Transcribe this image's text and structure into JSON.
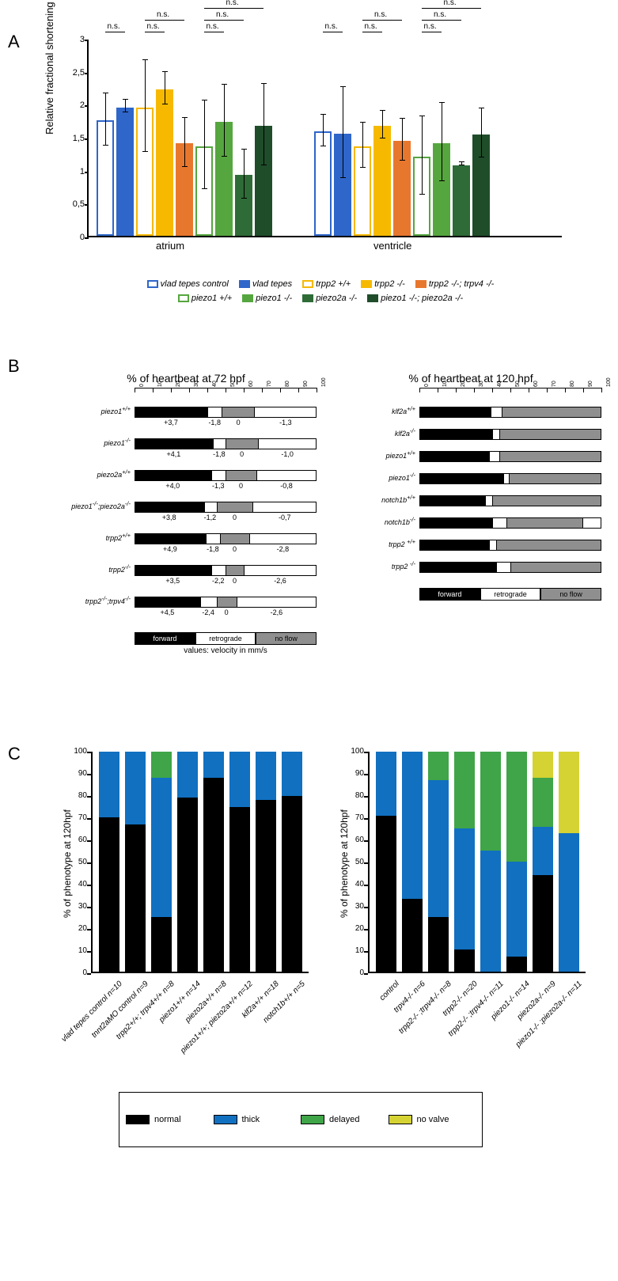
{
  "panel_labels": {
    "A": "A",
    "B": "B",
    "C": "C"
  },
  "panelA": {
    "ylabel": "Relative fractional shortening (a.u.)",
    "ylim": [
      0,
      3
    ],
    "yticks": [
      0,
      0.5,
      1,
      1.5,
      2,
      2.5,
      3
    ],
    "ytick_labels": [
      "0",
      "0,5",
      "1",
      "1,5",
      "2",
      "2,5",
      "3"
    ],
    "groups": [
      "atrium",
      "ventricle"
    ],
    "series": [
      {
        "name": "vlad tepes control",
        "fill": "#ffffff",
        "stroke": "#2f66c9"
      },
      {
        "name": "vlad tepes",
        "fill": "#2f66c9",
        "stroke": "#2f66c9"
      },
      {
        "name": "trpp2 +/+",
        "fill": "#ffffff",
        "stroke": "#f6b900"
      },
      {
        "name": "trpp2 -/-",
        "fill": "#f6b900",
        "stroke": "#f6b900"
      },
      {
        "name": "trpp2 -/-; trpv4 -/-",
        "fill": "#e8772e",
        "stroke": "#e8772e"
      },
      {
        "name": "piezo1 +/+",
        "fill": "#ffffff",
        "stroke": "#56a63f"
      },
      {
        "name": "piezo1 -/-",
        "fill": "#56a63f",
        "stroke": "#56a63f"
      },
      {
        "name": "piezo2a -/-",
        "fill": "#2e6b37",
        "stroke": "#2e6b37"
      },
      {
        "name": "piezo1 -/-; piezo2a -/-",
        "fill": "#1f4d2a",
        "stroke": "#1f4d2a"
      }
    ],
    "data": {
      "atrium": [
        {
          "v": 1.75,
          "el": 0.4,
          "eh": 0.4
        },
        {
          "v": 1.95,
          "el": 0.1,
          "eh": 0.1
        },
        {
          "v": 1.95,
          "el": 0.7,
          "eh": 0.7
        },
        {
          "v": 2.22,
          "el": 0.25,
          "eh": 0.25
        },
        {
          "v": 1.4,
          "el": 0.38,
          "eh": 0.38
        },
        {
          "v": 1.36,
          "el": 0.68,
          "eh": 0.68
        },
        {
          "v": 1.73,
          "el": 0.55,
          "eh": 0.55
        },
        {
          "v": 0.92,
          "el": 0.38,
          "eh": 0.38
        },
        {
          "v": 1.67,
          "el": 0.62,
          "eh": 0.62
        }
      ],
      "ventricle": [
        {
          "v": 1.58,
          "el": 0.25,
          "eh": 0.25
        },
        {
          "v": 1.55,
          "el": 0.7,
          "eh": 0.7
        },
        {
          "v": 1.36,
          "el": 0.35,
          "eh": 0.35
        },
        {
          "v": 1.67,
          "el": 0.22,
          "eh": 0.22
        },
        {
          "v": 1.44,
          "el": 0.32,
          "eh": 0.32
        },
        {
          "v": 1.2,
          "el": 0.6,
          "eh": 0.6
        },
        {
          "v": 1.4,
          "el": 0.6,
          "eh": 0.6
        },
        {
          "v": 1.07,
          "el": 0.03,
          "eh": 0.03
        },
        {
          "v": 1.54,
          "el": 0.38,
          "eh": 0.38
        }
      ]
    },
    "ns_label": "n.s.",
    "ns_comparisons": [
      {
        "group": 0,
        "from": 0,
        "to": 1,
        "level": 0
      },
      {
        "group": 0,
        "from": 2,
        "to": 3,
        "level": 0
      },
      {
        "group": 0,
        "from": 2,
        "to": 4,
        "level": 1
      },
      {
        "group": 0,
        "from": 5,
        "to": 6,
        "level": 0
      },
      {
        "group": 0,
        "from": 5,
        "to": 7,
        "level": 1
      },
      {
        "group": 0,
        "from": 5,
        "to": 8,
        "level": 2
      },
      {
        "group": 1,
        "from": 0,
        "to": 1,
        "level": 0
      },
      {
        "group": 1,
        "from": 2,
        "to": 3,
        "level": 0
      },
      {
        "group": 1,
        "from": 2,
        "to": 4,
        "level": 1
      },
      {
        "group": 1,
        "from": 5,
        "to": 6,
        "level": 0
      },
      {
        "group": 1,
        "from": 5,
        "to": 7,
        "level": 1
      },
      {
        "group": 1,
        "from": 5,
        "to": 8,
        "level": 2
      }
    ]
  },
  "panelB": {
    "left": {
      "title": "% of heartbeat at 72 hpf",
      "xticks": [
        0,
        10,
        20,
        30,
        40,
        50,
        60,
        70,
        80,
        90,
        100
      ],
      "rows": [
        {
          "label": "piezo1+/+",
          "segs": [
            40,
            8,
            18,
            34
          ],
          "vels": [
            "+3,7",
            "-1,8",
            "0",
            "-1,3"
          ]
        },
        {
          "label": "piezo1-/-",
          "segs": [
            43,
            7,
            18,
            32
          ],
          "vels": [
            "+4,1",
            "-1,8",
            "0",
            "-1,0"
          ]
        },
        {
          "label": "piezo2a+/+",
          "segs": [
            42,
            8,
            17,
            33
          ],
          "vels": [
            "+4,0",
            "-1,3",
            "0",
            "-0,8"
          ]
        },
        {
          "label": "piezo1-/-;piezo2a-/-",
          "segs": [
            38,
            7,
            20,
            35
          ],
          "vels": [
            "+3,8",
            "-1,2",
            "0",
            "-0,7"
          ]
        },
        {
          "label": "trpp2+/+",
          "segs": [
            39,
            8,
            16,
            37
          ],
          "vels": [
            "+4,9",
            "-1,8",
            "0",
            "-2,8"
          ]
        },
        {
          "label": "trpp2-/-",
          "segs": [
            42,
            8,
            10,
            40
          ],
          "vels": [
            "+3,5",
            "-2,2",
            "0",
            "-2,6"
          ]
        },
        {
          "label": "trpp2-/-;trpv4-/-",
          "segs": [
            36,
            9,
            11,
            44
          ],
          "vels": [
            "+4,5",
            "-2,4",
            "0",
            "-2,6"
          ]
        }
      ],
      "legend": [
        "forward",
        "retrograde",
        "no flow"
      ],
      "caption": "values: velocity in mm/s"
    },
    "right": {
      "title": "% of heartbeat at 120 hpf",
      "xticks": [
        0,
        10,
        20,
        30,
        40,
        50,
        60,
        70,
        80,
        90,
        100
      ],
      "rows": [
        {
          "label": "klf2a+/+",
          "segs": [
            39,
            6,
            55,
            0
          ],
          "vels": null
        },
        {
          "label": "klf2a-/-",
          "segs": [
            40,
            4,
            56,
            0
          ],
          "vels": null
        },
        {
          "label": "piezo1+/+",
          "segs": [
            38,
            6,
            56,
            0
          ],
          "vels": null
        },
        {
          "label": "piezo1-/-",
          "segs": [
            46,
            3,
            51,
            0
          ],
          "vels": null
        },
        {
          "label": "notch1b+/+",
          "segs": [
            36,
            4,
            60,
            0
          ],
          "vels": null
        },
        {
          "label": "notch1b-/-",
          "segs": [
            40,
            8,
            42,
            10
          ],
          "vels": null
        },
        {
          "label": "trpp2 +/+",
          "segs": [
            38,
            4,
            58,
            0
          ],
          "vels": null
        },
        {
          "label": "trpp2 -/-",
          "segs": [
            42,
            8,
            50,
            0
          ],
          "vels": null
        }
      ],
      "legend": [
        "forward",
        "retrograde",
        "no flow"
      ]
    },
    "seg_colors": [
      "#000000",
      "#ffffff",
      "#8f8f8f",
      "#ffffff"
    ],
    "legend_colors": [
      "#000000",
      "#ffffff",
      "#8f8f8f"
    ],
    "legend_text_colors": [
      "#ffffff",
      "#000000",
      "#000000"
    ]
  },
  "panelC": {
    "ylabel": "% of phenotype at 120hpf",
    "yticks": [
      0,
      10,
      20,
      30,
      40,
      50,
      60,
      70,
      80,
      90,
      100
    ],
    "colors": {
      "normal": "#000000",
      "thick": "#1170c0",
      "delayed": "#3fa548",
      "no_valve": "#d5d233"
    },
    "legend": [
      {
        "key": "normal",
        "label": "normal"
      },
      {
        "key": "thick",
        "label": "thick"
      },
      {
        "key": "delayed",
        "label": "delayed"
      },
      {
        "key": "no_valve",
        "label": "no valve"
      }
    ],
    "left": {
      "cols": [
        {
          "label": "vlad tepes control n=10",
          "segs": {
            "normal": 70,
            "thick": 30,
            "delayed": 0,
            "no_valve": 0
          }
        },
        {
          "label": "tnnt2aMO control n=9",
          "segs": {
            "normal": 67,
            "thick": 33,
            "delayed": 0,
            "no_valve": 0
          }
        },
        {
          "label": "trpp2+/+; trpv4+/+ n=8",
          "segs": {
            "normal": 25,
            "thick": 63,
            "delayed": 12,
            "no_valve": 0
          }
        },
        {
          "label": "piezo1+/+ n=14",
          "segs": {
            "normal": 79,
            "thick": 21,
            "delayed": 0,
            "no_valve": 0
          }
        },
        {
          "label": "piezo2a+/+ n=8",
          "segs": {
            "normal": 88,
            "thick": 12,
            "delayed": 0,
            "no_valve": 0
          }
        },
        {
          "label": "piezo1+/+; piezo2a+/+ n=12",
          "segs": {
            "normal": 75,
            "thick": 25,
            "delayed": 0,
            "no_valve": 0
          }
        },
        {
          "label": "klf2a+/+ n=18",
          "segs": {
            "normal": 78,
            "thick": 22,
            "delayed": 0,
            "no_valve": 0
          }
        },
        {
          "label": "notch1b+/+ n=5",
          "segs": {
            "normal": 80,
            "thick": 20,
            "delayed": 0,
            "no_valve": 0
          }
        }
      ]
    },
    "right": {
      "cols": [
        {
          "label": "control",
          "segs": {
            "normal": 71,
            "thick": 29,
            "delayed": 0,
            "no_valve": 0
          }
        },
        {
          "label": "trpv4-/-  n=6",
          "segs": {
            "normal": 33,
            "thick": 67,
            "delayed": 0,
            "no_valve": 0
          }
        },
        {
          "label": "trpp2-/- ;trpv4-/-  n=8",
          "segs": {
            "normal": 25,
            "thick": 62,
            "delayed": 13,
            "no_valve": 0
          }
        },
        {
          "label": "trpp2-/-  n=20",
          "segs": {
            "normal": 10,
            "thick": 55,
            "delayed": 35,
            "no_valve": 0
          }
        },
        {
          "label": "trpp2-/- ;trpv4-/-  n=11",
          "segs": {
            "normal": 0,
            "thick": 55,
            "delayed": 45,
            "no_valve": 0
          }
        },
        {
          "label": "piezo1-/-  n=14",
          "segs": {
            "normal": 7,
            "thick": 43,
            "delayed": 50,
            "no_valve": 0
          }
        },
        {
          "label": "piezo2a-/-  n=9",
          "segs": {
            "normal": 44,
            "thick": 22,
            "delayed": 22,
            "no_valve": 12
          }
        },
        {
          "label": "piezo1-/- ;piezo2a-/-  n=11",
          "segs": {
            "normal": 0,
            "thick": 63,
            "delayed": 0,
            "no_valve": 37
          }
        }
      ]
    }
  }
}
